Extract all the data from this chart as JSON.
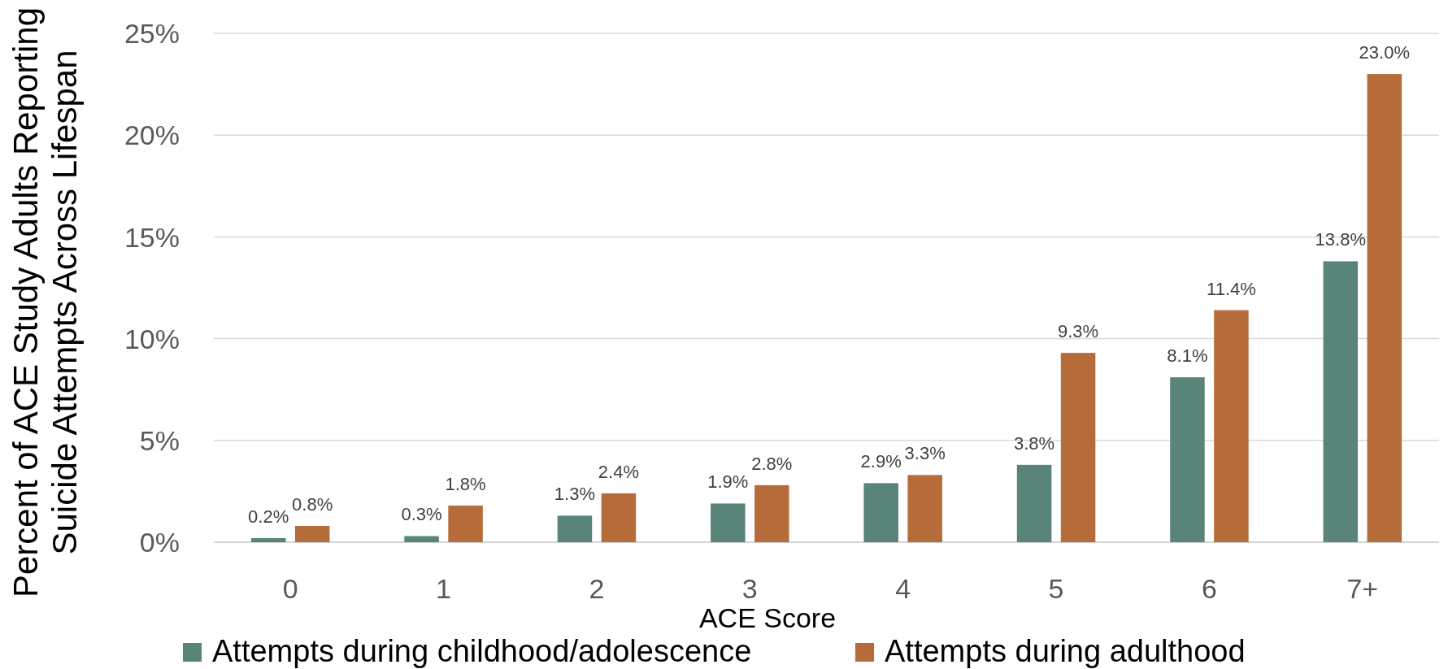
{
  "chart_data": {
    "type": "bar",
    "categories": [
      "0",
      "1",
      "2",
      "3",
      "4",
      "5",
      "6",
      "7+"
    ],
    "series": [
      {
        "name": "Attempts during childhood/adolescence",
        "color": "#588479",
        "values": [
          0.2,
          0.3,
          1.3,
          1.9,
          2.9,
          3.8,
          8.1,
          13.8
        ],
        "value_labels": [
          "0.2%",
          "0.3%",
          "1.3%",
          "1.9%",
          "2.9%",
          "3.8%",
          "8.1%",
          "13.8%"
        ]
      },
      {
        "name": "Attempts during adulthood",
        "color": "#b56c3a",
        "values": [
          0.8,
          1.8,
          2.4,
          2.8,
          3.3,
          9.3,
          11.4,
          23.0
        ],
        "value_labels": [
          "0.8%",
          "1.8%",
          "2.4%",
          "2.8%",
          "3.3%",
          "9.3%",
          "11.4%",
          "23.0%"
        ]
      }
    ],
    "xlabel": "ACE Score",
    "ylabel": "Percent of ACE Study Adults Reporting\nSuicide Attempts Across Lifespan",
    "ylim": [
      0,
      25
    ],
    "yticks": [
      {
        "value": 0,
        "label": "0%"
      },
      {
        "value": 5,
        "label": "5%"
      },
      {
        "value": 10,
        "label": "10%"
      },
      {
        "value": 15,
        "label": "15%"
      },
      {
        "value": 20,
        "label": "20%"
      },
      {
        "value": 25,
        "label": "25%"
      }
    ],
    "grid": "y",
    "legend": "bottom"
  }
}
